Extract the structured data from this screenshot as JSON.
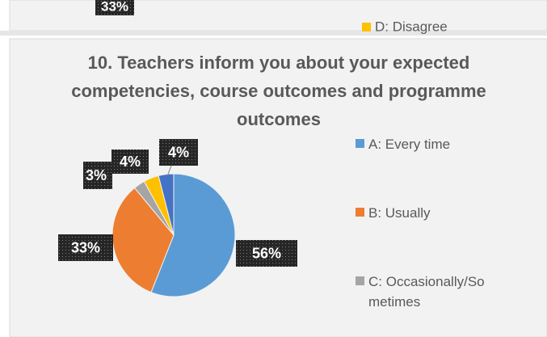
{
  "top_fragment": {
    "data_label": "33%",
    "legend_item": "D: Disagree",
    "legend_color": "#ffc000"
  },
  "chart_data": {
    "type": "pie",
    "title": "10. Teachers inform you about your expected competencies, course outcomes and programme outcomes",
    "categories": [
      "A:  Every time",
      "B:  Usually",
      "C: Occasionally/Sometimes",
      null,
      null
    ],
    "values": [
      56,
      33,
      3,
      4,
      4
    ],
    "value_labels": [
      "56%",
      "33%",
      "3%",
      "4%",
      "4%"
    ],
    "colors": [
      "#5b9bd5",
      "#ed7d31",
      "#a5a5a5",
      "#ffc000",
      "#4472c4"
    ],
    "legend": "right"
  }
}
